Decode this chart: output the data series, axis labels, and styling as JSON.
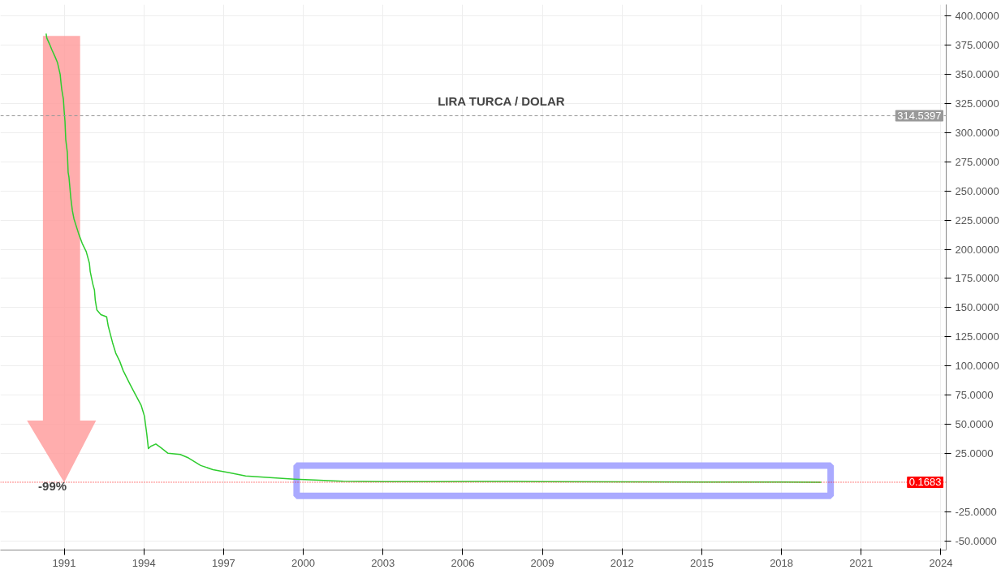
{
  "chart_data": {
    "type": "line",
    "title": "LIRA TURCA / DOLAR",
    "x": [
      1990.32,
      1990.35,
      1990.45,
      1990.54,
      1990.66,
      1990.75,
      1990.85,
      1990.88,
      1990.91,
      1990.97,
      1991.0,
      1991.03,
      1991.06,
      1991.12,
      1991.15,
      1991.18,
      1991.25,
      1991.31,
      1991.37,
      1991.55,
      1991.68,
      1991.83,
      1991.95,
      1991.98,
      1992.08,
      1992.14,
      1992.17,
      1992.23,
      1992.38,
      1992.6,
      1992.66,
      1992.82,
      1992.94,
      1993.09,
      1993.22,
      1993.46,
      1993.62,
      1993.9,
      1994.02,
      1994.11,
      1994.17,
      1994.26,
      1994.45,
      1994.63,
      1994.91,
      1995.37,
      1995.68,
      1996.14,
      1996.6,
      1997.22,
      1997.83,
      1998.75,
      1999.68,
      2000.45,
      2001.1,
      2001.5,
      2003.0,
      2005.0,
      2006.5,
      2008.0,
      2009.0,
      2012.0,
      2015.0,
      2018.0,
      2019.5
    ],
    "series": [
      {
        "color": "#2ecc2e",
        "values": [
          385,
          381,
          376,
          371,
          365,
          360,
          350,
          343,
          337,
          329,
          318.5,
          310,
          294,
          283,
          266,
          262,
          244,
          233,
          226,
          213,
          205,
          198,
          188,
          181,
          170,
          165,
          156.5,
          148,
          144,
          142,
          134,
          120,
          111,
          104,
          96,
          85,
          78,
          66,
          57,
          41.5,
          29,
          31,
          33,
          30,
          25,
          24,
          21,
          14.5,
          11,
          8.3,
          5.5,
          4.2,
          2.8,
          2,
          1.4,
          1.0,
          0.6,
          0.7,
          0.8,
          0.8,
          0.6,
          0.5,
          0.4,
          0.3,
          0.2
        ]
      }
    ],
    "xlim": [
      1988.6,
      2024.2
    ],
    "xticks": [
      1991,
      1994,
      1997,
      2000,
      2003,
      2006,
      2009,
      2012,
      2015,
      2018,
      2021,
      2024
    ],
    "ylim": [
      -58,
      410
    ],
    "yticks": [
      {
        "value": -50,
        "label": "-50.0000"
      },
      {
        "value": -25,
        "label": "-25.0000"
      },
      {
        "value": 25,
        "label": "25.0000"
      },
      {
        "value": 50,
        "label": "50.0000"
      },
      {
        "value": 75,
        "label": "75.0000"
      },
      {
        "value": 100,
        "label": "100.0000"
      },
      {
        "value": 125,
        "label": "125.0000"
      },
      {
        "value": 150,
        "label": "150.0000"
      },
      {
        "value": 175,
        "label": "175.0000"
      },
      {
        "value": 200,
        "label": "200.0000"
      },
      {
        "value": 225,
        "label": "225.0000"
      },
      {
        "value": 250,
        "label": "250.0000"
      },
      {
        "value": 275,
        "label": "275.0000"
      },
      {
        "value": 300,
        "label": "300.0000"
      },
      {
        "value": 325,
        "label": "325.0000"
      },
      {
        "value": 350,
        "label": "350.0000"
      },
      {
        "value": 375,
        "label": "375.0000"
      },
      {
        "value": 400,
        "label": "400.0000"
      }
    ],
    "ref_lines": [
      {
        "axis": "y",
        "value": 314.5397,
        "label": "314.5397",
        "color": "#999999",
        "line_style": "dashed"
      },
      {
        "axis": "y",
        "value": 0.1683,
        "label": "0.1683",
        "color": "#ff0000",
        "line_style": "dotted"
      }
    ],
    "annotations": [
      "-99%"
    ],
    "grid": true,
    "marker": "none",
    "line_style": "solid"
  }
}
